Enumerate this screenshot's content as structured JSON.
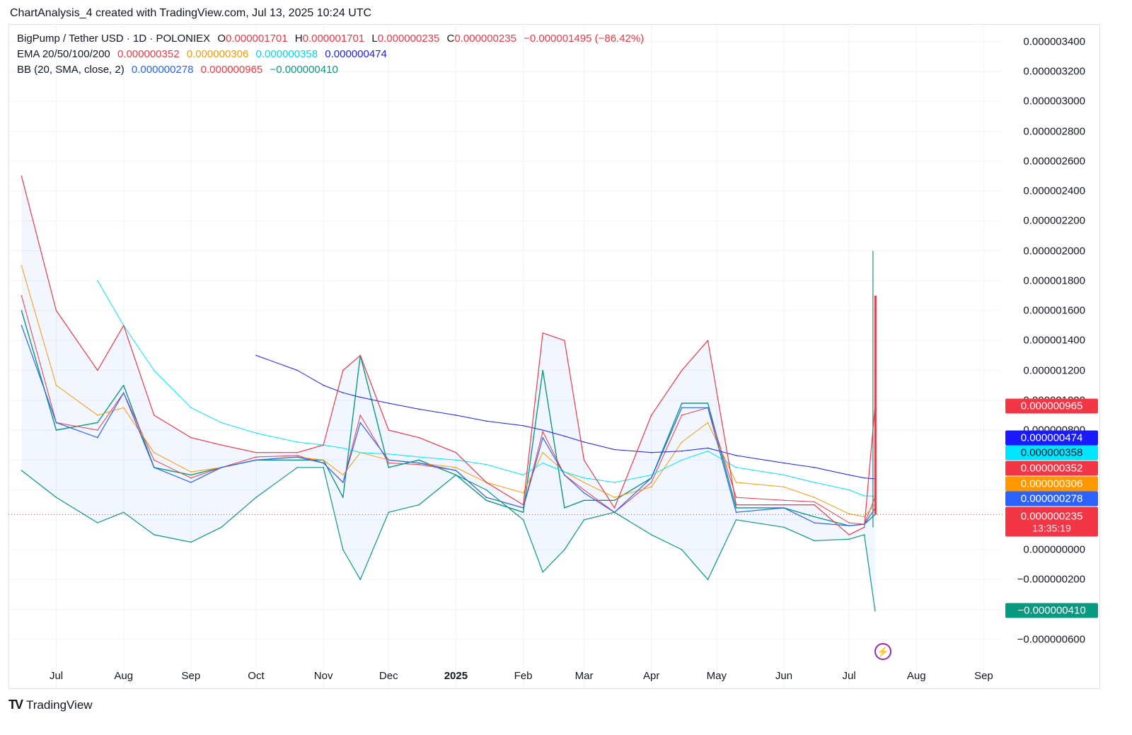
{
  "header": {
    "caption": "ChartAnalysis_4 created with TradingView.com, Jul 13, 2025 10:24 UTC"
  },
  "legend": {
    "symbol": "BigPump / Tether USD · 1D · POLONIEX",
    "ohlc": {
      "o_label": "O",
      "o_value": "0.000001701",
      "h_label": "H",
      "h_value": "0.000001701",
      "l_label": "L",
      "l_value": "0.000000235",
      "c_label": "C",
      "c_value": "0.000000235",
      "change": "−0.000001495 (−86.42%)"
    },
    "ema": {
      "label": "EMA 20/50/100/200",
      "values": [
        "0.000000352",
        "0.000000306",
        "0.000000358",
        "0.000000474"
      ],
      "colors": [
        "#f23645",
        "#ff9800",
        "#00e5ff",
        "#1a1aff"
      ]
    },
    "bb": {
      "label": "BB (20, SMA, close, 2)",
      "values": [
        "0.000000278",
        "0.000000965",
        "−0.000000410"
      ],
      "colors": [
        "#2962ff",
        "#f23645",
        "#089981"
      ]
    }
  },
  "y_axis": {
    "ticks": [
      "0.000003400",
      "0.000003200",
      "0.000003000",
      "0.000002800",
      "0.000002600",
      "0.000002400",
      "0.000002200",
      "0.000002000",
      "0.000001800",
      "0.000001600",
      "0.000001400",
      "0.000001200",
      "0.000001000",
      "0.000000800",
      "0.000000000",
      "−0.000000200",
      "−0.000000600"
    ]
  },
  "x_axis": {
    "ticks": [
      "Jul",
      "Aug",
      "Sep",
      "Oct",
      "Nov",
      "Dec",
      "2025",
      "Feb",
      "Mar",
      "Apr",
      "May",
      "Jun",
      "Jul",
      "Aug",
      "Sep"
    ]
  },
  "price_tags": [
    {
      "label": "0.000000965",
      "color": "#f23645"
    },
    {
      "label": "0.000000474",
      "color": "#1a1aff"
    },
    {
      "label": "0.000000358",
      "color": "#00e5ff"
    },
    {
      "label": "0.000000352",
      "color": "#f23645"
    },
    {
      "label": "0.000000306",
      "color": "#ff9800"
    },
    {
      "label": "0.000000278",
      "color": "#2962ff"
    },
    {
      "label": "0.000000235",
      "sub": "13:35:19",
      "color": "#f23645"
    },
    {
      "label": "−0.000000410",
      "color": "#089981"
    }
  ],
  "brand": {
    "name": "TradingView",
    "logo": "TV"
  },
  "icons": {
    "flash": "lightning-bolt-icon"
  },
  "chart_data": {
    "type": "line",
    "unit": "USDT",
    "x_dates": [
      "2024-06-15",
      "2024-07-01",
      "2024-07-20",
      "2024-08-01",
      "2024-08-15",
      "2024-09-01",
      "2024-09-15",
      "2024-10-01",
      "2024-10-20",
      "2024-11-01",
      "2024-11-10",
      "2024-11-18",
      "2024-12-01",
      "2024-12-15",
      "2025-01-01",
      "2025-01-15",
      "2025-02-01",
      "2025-02-10",
      "2025-02-20",
      "2025-03-01",
      "2025-03-15",
      "2025-04-01",
      "2025-04-15",
      "2025-04-27",
      "2025-05-10",
      "2025-06-01",
      "2025-06-15",
      "2025-07-01",
      "2025-07-08",
      "2025-07-13"
    ],
    "series": [
      {
        "name": "Price",
        "color": "#089981",
        "values": [
          1.6e-06,
          8e-07,
          8.5e-07,
          1.1e-06,
          5.5e-07,
          5e-07,
          5.5e-07,
          6e-07,
          6e-07,
          6e-07,
          3.5e-07,
          1.3e-06,
          5.5e-07,
          6e-07,
          5e-07,
          3.3e-07,
          2.5e-07,
          1.2e-06,
          2.8e-07,
          3.3e-07,
          3.3e-07,
          4.8e-07,
          9.8e-07,
          9.8e-07,
          2.8e-07,
          2.8e-07,
          2.2e-07,
          1.6e-07,
          1.7e-07,
          2.35e-07
        ]
      },
      {
        "name": "EMA 20",
        "color": "#f23645",
        "values": [
          1.7e-06,
          8.5e-07,
          8e-07,
          1.05e-06,
          6e-07,
          4.8e-07,
          5.5e-07,
          6.2e-07,
          6.3e-07,
          5.8e-07,
          4.5e-07,
          9e-07,
          5.8e-07,
          5.7e-07,
          5.3e-07,
          3.5e-07,
          2.8e-07,
          7.9e-07,
          5e-07,
          4e-07,
          2.5e-07,
          4.5e-07,
          9e-07,
          9.5e-07,
          3.5e-07,
          3.3e-07,
          3.2e-07,
          1.8e-07,
          1.7e-07,
          3.52e-07
        ]
      },
      {
        "name": "EMA 50",
        "color": "#ff9800",
        "values": [
          1.9e-06,
          1.1e-06,
          9e-07,
          9.5e-07,
          6.5e-07,
          5.2e-07,
          5.5e-07,
          6e-07,
          6.2e-07,
          6e-07,
          5e-07,
          6.5e-07,
          6e-07,
          5.8e-07,
          5.5e-07,
          4.5e-07,
          3.8e-07,
          6.5e-07,
          5.2e-07,
          4.5e-07,
          3.5e-07,
          4.2e-07,
          7.2e-07,
          8.5e-07,
          4.5e-07,
          4.2e-07,
          3.5e-07,
          2.4e-07,
          2.2e-07,
          3.06e-07
        ]
      },
      {
        "name": "EMA 100",
        "color": "#00e5ff",
        "values": [
          null,
          null,
          1.8e-06,
          1.5e-06,
          1.2e-06,
          9.5e-07,
          8.5e-07,
          7.8e-07,
          7.2e-07,
          7e-07,
          6.8e-07,
          6.5e-07,
          6.4e-07,
          6.2e-07,
          6e-07,
          5.7e-07,
          5e-07,
          5.8e-07,
          5.2e-07,
          4.8e-07,
          4.5e-07,
          5e-07,
          6e-07,
          6.6e-07,
          5.5e-07,
          5e-07,
          4.5e-07,
          4e-07,
          3.6e-07,
          3.58e-07
        ]
      },
      {
        "name": "EMA 200",
        "color": "#1a1aff",
        "values": [
          null,
          null,
          null,
          null,
          null,
          null,
          null,
          1.3e-06,
          1.2e-06,
          1.1e-06,
          1.05e-06,
          1.02e-06,
          9.8e-07,
          9.4e-07,
          9e-07,
          8.6e-07,
          8.3e-07,
          8e-07,
          7.6e-07,
          7.2e-07,
          6.7e-07,
          6.5e-07,
          6.6e-07,
          6.8e-07,
          6.3e-07,
          5.8e-07,
          5.5e-07,
          5e-07,
          4.8e-07,
          4.74e-07
        ]
      },
      {
        "name": "BB Upper",
        "color": "#f23645",
        "values": [
          2.5e-06,
          1.6e-06,
          1.2e-06,
          1.5e-06,
          9e-07,
          7.5e-07,
          7e-07,
          6.5e-07,
          6.5e-07,
          7e-07,
          1.2e-06,
          1.3e-06,
          8e-07,
          7.5e-07,
          6.5e-07,
          4.5e-07,
          3e-07,
          1.45e-06,
          1.4e-06,
          6e-07,
          2.8e-07,
          9e-07,
          1.2e-06,
          1.4e-06,
          3e-07,
          3e-07,
          3e-07,
          1e-07,
          1.5e-07,
          9.65e-07
        ]
      },
      {
        "name": "BB Basis",
        "color": "#2962ff",
        "values": [
          1.5e-06,
          8.5e-07,
          7.5e-07,
          1.05e-06,
          5.5e-07,
          4.5e-07,
          5.5e-07,
          6e-07,
          6.2e-07,
          5.8e-07,
          4.5e-07,
          8.5e-07,
          6e-07,
          5.8e-07,
          5.3e-07,
          3.5e-07,
          2.8e-07,
          7.5e-07,
          5e-07,
          3.8e-07,
          2.5e-07,
          4.8e-07,
          9.5e-07,
          9.5e-07,
          2.5e-07,
          2.8e-07,
          1.8e-07,
          1.6e-07,
          1.7e-07,
          2.78e-07
        ]
      },
      {
        "name": "BB Lower",
        "color": "#089981",
        "values": [
          5.3e-07,
          3.5e-07,
          1.8e-07,
          2.5e-07,
          1e-07,
          5e-08,
          1.5e-07,
          3.5e-07,
          5.5e-07,
          5.5e-07,
          0.0,
          -2e-07,
          2.5e-07,
          3e-07,
          5e-07,
          4e-07,
          2e-07,
          -1.5e-07,
          0.0,
          2e-07,
          2.5e-07,
          1e-07,
          0.0,
          -2e-07,
          2e-07,
          1.5e-07,
          6e-08,
          7e-08,
          1e-07,
          -4.1e-07
        ]
      }
    ],
    "ylim": [
      -8e-07,
      3.5e-06
    ],
    "xlabel": "",
    "ylabel": "",
    "grid": true,
    "legend": "top-left"
  }
}
